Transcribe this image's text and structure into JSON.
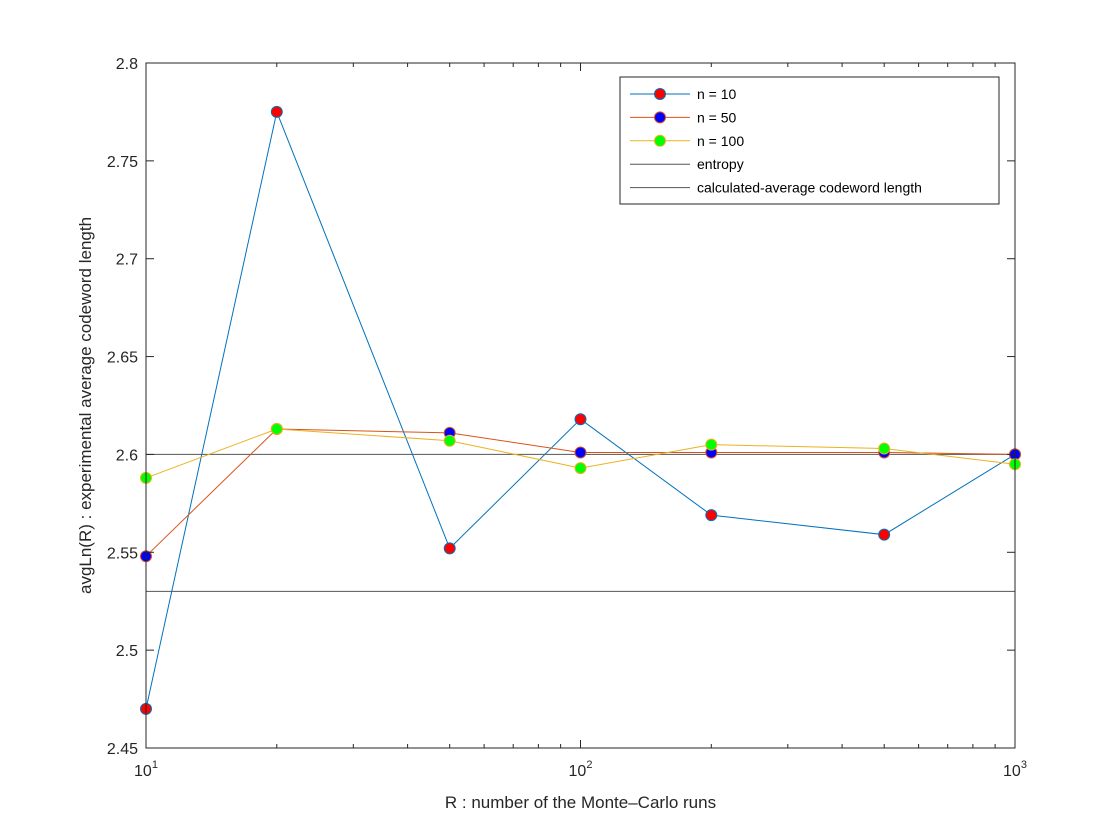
{
  "chart_data": {
    "type": "line",
    "xscale": "log",
    "xlim": [
      10,
      1000
    ],
    "ylim": [
      2.45,
      2.8
    ],
    "xlabel": "R : number of the Monte–Carlo runs",
    "ylabel": "avgLn(R) : experimental average codeword length",
    "xticks": [
      {
        "value": 10,
        "base": "10",
        "exp": "1"
      },
      {
        "value": 100,
        "base": "10",
        "exp": "2"
      },
      {
        "value": 1000,
        "base": "10",
        "exp": "3"
      }
    ],
    "yticks": [
      "2.45",
      "2.5",
      "2.55",
      "2.6",
      "2.65",
      "2.7",
      "2.75",
      "2.8"
    ],
    "x": [
      10,
      20,
      50,
      100,
      200,
      500,
      1000
    ],
    "series": [
      {
        "name": "n = 10",
        "line_color": "#0072bd",
        "marker_color": "#ff0000",
        "values": [
          2.47,
          2.775,
          2.552,
          2.618,
          2.569,
          2.559,
          2.6
        ]
      },
      {
        "name": "n = 50",
        "line_color": "#d95319",
        "marker_color": "#0000ff",
        "values": [
          2.548,
          2.613,
          2.611,
          2.601,
          2.601,
          2.601,
          2.6
        ]
      },
      {
        "name": "n = 100",
        "line_color": "#edb120",
        "marker_color": "#00ff00",
        "values": [
          2.588,
          2.613,
          2.607,
          2.593,
          2.605,
          2.603,
          2.595
        ]
      }
    ],
    "reference_lines": [
      {
        "name": "entropy",
        "value": 2.53,
        "color": "#555555"
      },
      {
        "name": "calculated-average codeword length",
        "value": 2.6,
        "color": "#555555"
      }
    ],
    "legend_position": "top-right",
    "grid": false
  }
}
